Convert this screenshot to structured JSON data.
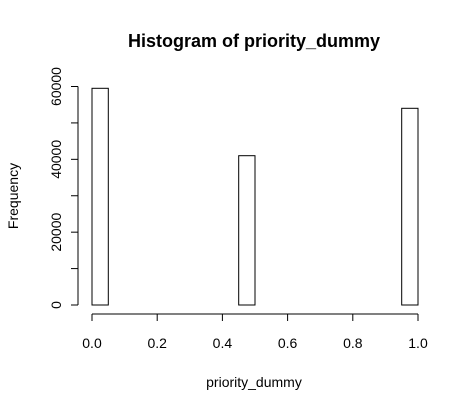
{
  "chart_data": {
    "type": "bar",
    "title": "Histogram of priority_dummy",
    "xlabel": "priority_dummy",
    "ylabel": "Frequency",
    "xlim": [
      0,
      1
    ],
    "ylim": [
      0,
      60000
    ],
    "x_ticks": [
      0.0,
      0.2,
      0.4,
      0.6,
      0.8,
      1.0
    ],
    "x_tick_labels": [
      "0.0",
      "0.2",
      "0.4",
      "0.6",
      "0.8",
      "1.0"
    ],
    "y_ticks": [
      0,
      10000,
      20000,
      30000,
      40000,
      50000,
      60000
    ],
    "y_tick_labels": [
      "0",
      "",
      "20000",
      "",
      "40000",
      "",
      "60000"
    ],
    "bins": [
      {
        "x0": 0.0,
        "x1": 0.05,
        "count": 59500
      },
      {
        "x0": 0.05,
        "x1": 0.1,
        "count": 0
      },
      {
        "x0": 0.1,
        "x1": 0.15,
        "count": 0
      },
      {
        "x0": 0.15,
        "x1": 0.2,
        "count": 0
      },
      {
        "x0": 0.2,
        "x1": 0.25,
        "count": 0
      },
      {
        "x0": 0.25,
        "x1": 0.3,
        "count": 0
      },
      {
        "x0": 0.3,
        "x1": 0.35,
        "count": 0
      },
      {
        "x0": 0.35,
        "x1": 0.4,
        "count": 0
      },
      {
        "x0": 0.4,
        "x1": 0.45,
        "count": 0
      },
      {
        "x0": 0.45,
        "x1": 0.5,
        "count": 41000
      },
      {
        "x0": 0.5,
        "x1": 0.55,
        "count": 0
      },
      {
        "x0": 0.55,
        "x1": 0.6,
        "count": 0
      },
      {
        "x0": 0.6,
        "x1": 0.65,
        "count": 0
      },
      {
        "x0": 0.65,
        "x1": 0.7,
        "count": 0
      },
      {
        "x0": 0.7,
        "x1": 0.75,
        "count": 0
      },
      {
        "x0": 0.75,
        "x1": 0.8,
        "count": 0
      },
      {
        "x0": 0.8,
        "x1": 0.85,
        "count": 0
      },
      {
        "x0": 0.85,
        "x1": 0.9,
        "count": 0
      },
      {
        "x0": 0.9,
        "x1": 0.95,
        "count": 0
      },
      {
        "x0": 0.95,
        "x1": 1.0,
        "count": 54000
      }
    ],
    "grid": false,
    "legend": "none",
    "colors": {
      "bar_fill": "#ffffff",
      "bar_stroke": "#000000",
      "background": "#ffffff"
    }
  }
}
